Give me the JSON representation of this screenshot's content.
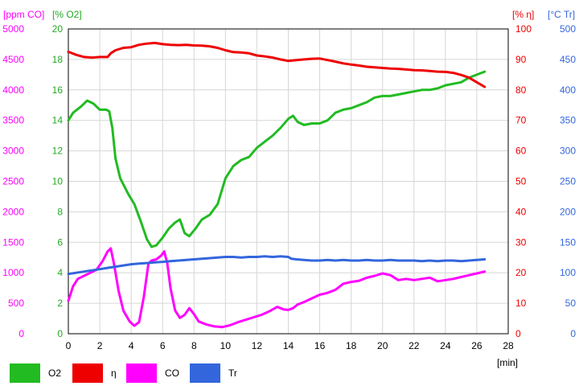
{
  "chart_data": {
    "type": "line",
    "x_unit_label": "[min]",
    "xlim": [
      0,
      28
    ],
    "x_ticks": [
      0,
      2,
      4,
      6,
      8,
      10,
      12,
      14,
      16,
      18,
      20,
      22,
      24,
      26,
      28
    ],
    "grid": true,
    "legend_position": "bottom",
    "axes": [
      {
        "id": "co",
        "label": "[ppm CO]",
        "side": "left-outer",
        "color": "#ff00ff",
        "lim": [
          0,
          5000
        ],
        "ticks": [
          0,
          500,
          1000,
          1500,
          2000,
          2500,
          3000,
          3500,
          4000,
          4500,
          5000
        ]
      },
      {
        "id": "o2",
        "label": "[% O2]",
        "side": "left-inner",
        "color": "#22aa22",
        "lim": [
          0,
          20
        ],
        "ticks": [
          0,
          2,
          4,
          6,
          8,
          10,
          12,
          14,
          16,
          18,
          20
        ]
      },
      {
        "id": "eta",
        "label": "[% η]",
        "side": "right-inner",
        "color": "#ee0000",
        "lim": [
          0,
          100
        ],
        "ticks": [
          0,
          10,
          20,
          30,
          40,
          50,
          60,
          70,
          80,
          90,
          100
        ]
      },
      {
        "id": "tr",
        "label": "[°C Tr]",
        "side": "right-outer",
        "color": "#3366dd",
        "lim": [
          0,
          500
        ],
        "ticks": [
          0,
          50,
          100,
          150,
          200,
          250,
          300,
          350,
          400,
          450,
          500
        ]
      }
    ],
    "series": [
      {
        "name": "O2",
        "axis": "o2",
        "color": "#22bb22",
        "x": [
          0,
          0.3,
          0.8,
          1.2,
          1.6,
          2.0,
          2.4,
          2.6,
          2.8,
          3.0,
          3.3,
          3.8,
          4.2,
          4.6,
          5.0,
          5.3,
          5.6,
          6.0,
          6.4,
          6.8,
          7.1,
          7.4,
          7.7,
          8.1,
          8.5,
          9.0,
          9.5,
          10.0,
          10.5,
          11.0,
          11.5,
          12.0,
          12.5,
          13.0,
          13.5,
          14.0,
          14.3,
          14.6,
          15.0,
          15.5,
          16.0,
          16.5,
          17.0,
          17.5,
          18.0,
          18.5,
          19.0,
          19.5,
          20.0,
          20.5,
          21.0,
          21.5,
          22.0,
          22.5,
          23.0,
          23.5,
          24.0,
          24.5,
          25.0,
          25.5,
          26.0,
          26.5
        ],
        "values": [
          14.0,
          14.5,
          14.9,
          15.3,
          15.1,
          14.7,
          14.7,
          14.6,
          13.5,
          11.5,
          10.2,
          9.2,
          8.5,
          7.4,
          6.2,
          5.7,
          5.8,
          6.3,
          6.9,
          7.3,
          7.5,
          6.6,
          6.4,
          6.9,
          7.5,
          7.8,
          8.5,
          10.2,
          11.0,
          11.4,
          11.6,
          12.2,
          12.6,
          13.0,
          13.5,
          14.1,
          14.3,
          13.9,
          13.7,
          13.8,
          13.8,
          14.0,
          14.5,
          14.7,
          14.8,
          15.0,
          15.2,
          15.5,
          15.6,
          15.6,
          15.7,
          15.8,
          15.9,
          16.0,
          16.0,
          16.1,
          16.3,
          16.4,
          16.5,
          16.8,
          17.0,
          17.2
        ]
      },
      {
        "name": "η",
        "axis": "eta",
        "color": "#ee0000",
        "x": [
          0,
          0.5,
          1.0,
          1.5,
          2.0,
          2.5,
          2.7,
          3.0,
          3.5,
          4.0,
          4.5,
          5.0,
          5.5,
          6.0,
          6.5,
          7.0,
          7.5,
          8.0,
          8.5,
          9.0,
          9.5,
          10.0,
          10.5,
          11.0,
          11.5,
          12.0,
          12.5,
          13.0,
          13.5,
          14.0,
          14.5,
          15.0,
          15.5,
          16.0,
          16.5,
          17.0,
          17.5,
          18.0,
          18.5,
          19.0,
          19.5,
          20.0,
          20.5,
          21.0,
          21.5,
          22.0,
          22.5,
          23.0,
          23.5,
          24.0,
          24.5,
          25.0,
          25.5,
          26.0,
          26.5
        ],
        "values": [
          92.5,
          91.5,
          90.8,
          90.6,
          90.8,
          90.8,
          92.0,
          93.0,
          93.8,
          94.0,
          94.8,
          95.2,
          95.4,
          95.0,
          94.8,
          94.7,
          94.8,
          94.6,
          94.5,
          94.3,
          93.8,
          93.0,
          92.4,
          92.3,
          92.0,
          91.3,
          91.0,
          90.6,
          90.0,
          89.5,
          89.8,
          90.0,
          90.2,
          90.3,
          89.8,
          89.3,
          88.7,
          88.3,
          88.0,
          87.6,
          87.4,
          87.2,
          87.0,
          86.9,
          86.7,
          86.5,
          86.4,
          86.2,
          86.0,
          85.9,
          85.6,
          84.9,
          84.0,
          82.5,
          81.0
        ]
      },
      {
        "name": "CO",
        "axis": "co",
        "color": "#ff00ff",
        "x": [
          0,
          0.3,
          0.6,
          1.0,
          1.4,
          1.8,
          2.2,
          2.5,
          2.7,
          2.9,
          3.2,
          3.5,
          3.9,
          4.2,
          4.5,
          4.8,
          5.1,
          5.3,
          5.6,
          5.9,
          6.1,
          6.3,
          6.5,
          6.8,
          7.1,
          7.4,
          7.7,
          8.0,
          8.3,
          8.8,
          9.3,
          9.8,
          10.3,
          10.8,
          11.3,
          11.8,
          12.3,
          12.8,
          13.3,
          13.7,
          14.0,
          14.3,
          14.6,
          15.0,
          15.5,
          16.0,
          16.5,
          17.0,
          17.5,
          18.0,
          18.5,
          19.0,
          19.5,
          20.0,
          20.5,
          21.0,
          21.5,
          22.0,
          22.5,
          23.0,
          23.5,
          24.0,
          24.5,
          25.0,
          25.5,
          26.0,
          26.5
        ],
        "values": [
          540,
          780,
          900,
          950,
          1000,
          1050,
          1200,
          1350,
          1400,
          1150,
          700,
          380,
          200,
          130,
          190,
          600,
          1150,
          1200,
          1220,
          1280,
          1350,
          1150,
          750,
          380,
          260,
          310,
          420,
          320,
          200,
          150,
          120,
          110,
          140,
          190,
          230,
          270,
          310,
          370,
          440,
          400,
          390,
          420,
          480,
          520,
          580,
          640,
          670,
          720,
          820,
          850,
          870,
          920,
          950,
          990,
          960,
          880,
          900,
          880,
          900,
          920,
          860,
          880,
          900,
          930,
          960,
          990,
          1020
        ]
      },
      {
        "name": "Tr",
        "axis": "tr",
        "color": "#3366dd",
        "x": [
          0,
          0.5,
          1.0,
          1.5,
          2.0,
          2.5,
          3.0,
          3.5,
          4.0,
          4.5,
          5.0,
          5.5,
          6.0,
          6.5,
          7.0,
          7.5,
          8.0,
          8.5,
          9.0,
          9.5,
          10.0,
          10.5,
          11.0,
          11.5,
          12.0,
          12.5,
          13.0,
          13.5,
          14.0,
          14.2,
          14.5,
          15.0,
          15.5,
          16.0,
          16.5,
          17.0,
          17.5,
          18.0,
          18.5,
          19.0,
          19.5,
          20.0,
          20.5,
          21.0,
          21.5,
          22.0,
          22.5,
          23.0,
          23.5,
          24.0,
          24.5,
          25.0,
          25.5,
          26.0,
          26.5
        ],
        "values": [
          98,
          100,
          102,
          104,
          106,
          108,
          110,
          112,
          114,
          115,
          116,
          117,
          118,
          119,
          120,
          121,
          122,
          123,
          124,
          125,
          126,
          126,
          125,
          126,
          126,
          127,
          126,
          127,
          126,
          123,
          122,
          121,
          120,
          120,
          121,
          120,
          121,
          120,
          120,
          121,
          120,
          120,
          121,
          120,
          120,
          120,
          119,
          120,
          119,
          120,
          120,
          119,
          120,
          121,
          122
        ]
      }
    ]
  }
}
